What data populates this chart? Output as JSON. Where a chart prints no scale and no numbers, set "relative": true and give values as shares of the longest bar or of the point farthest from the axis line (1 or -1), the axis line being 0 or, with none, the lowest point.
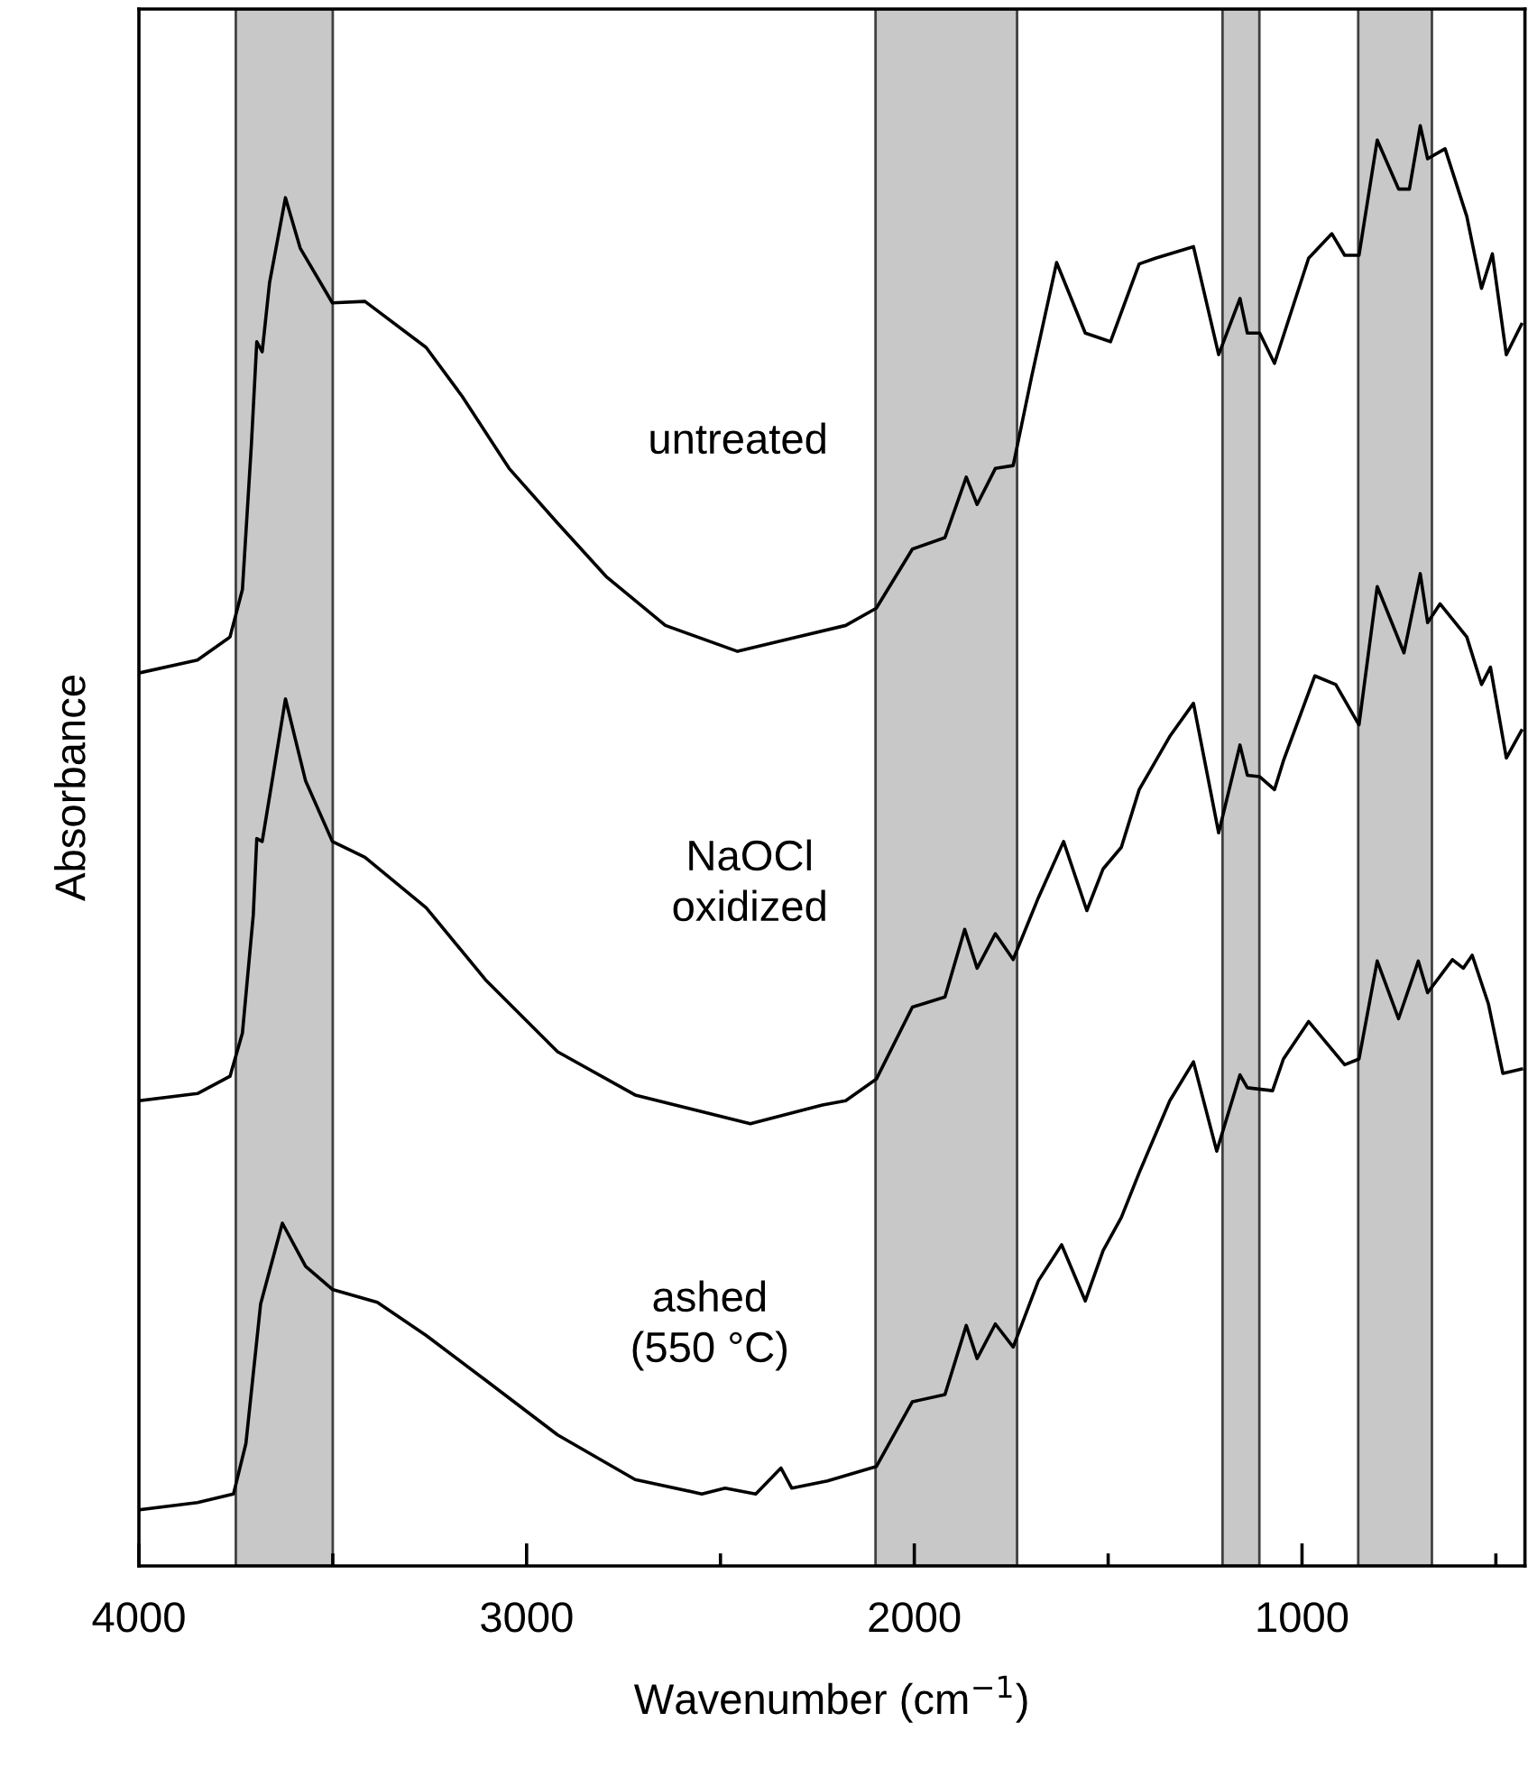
{
  "chart_data": {
    "type": "line",
    "relative": true,
    "xlabel": "Wavenumber (cm$^{−1}$)",
    "ylabel": "Absorbance",
    "xlim": [
      4000,
      425
    ],
    "xticks": [
      4000,
      {
        "value": 3500,
        "label": null
      },
      3000,
      {
        "value": 2500,
        "label": null
      },
      2000,
      {
        "value": 1500,
        "label": null
      },
      1000,
      {
        "value": 500,
        "label": null
      }
    ],
    "grid": false,
    "legend": false,
    "line_style": "solid",
    "marker": "none",
    "bands": [
      {
        "axis": "x",
        "from": 3750,
        "to": 3500,
        "color": "#c8c8c8"
      },
      {
        "axis": "x",
        "from": 2100,
        "to": 1735,
        "color": "#c8c8c8"
      },
      {
        "axis": "x",
        "from": 1205,
        "to": 1110,
        "color": "#c8c8c8"
      },
      {
        "axis": "x",
        "from": 855,
        "to": 665,
        "color": "#c8c8c8"
      }
    ],
    "series": [
      {
        "name": "untreated",
        "color": "#000000",
        "x": [
          4000,
          3849,
          3765,
          3733,
          3710,
          3696,
          3682,
          3663,
          3622,
          3584,
          3501,
          3417,
          3259,
          3166,
          3045,
          2920,
          2795,
          2642,
          2456,
          2303,
          2177,
          2098,
          2005,
          1921,
          1866,
          1838,
          1791,
          1745,
          1698,
          1633,
          1559,
          1494,
          1420,
          1378,
          1280,
          1215,
          1160,
          1141,
          1109,
          1071,
          983,
          923,
          890,
          853,
          806,
          751,
          723,
          695,
          676,
          631,
          575,
          537,
          509,
          473,
          434
        ],
        "values": [
          0.62,
          0.629,
          0.645,
          0.678,
          0.778,
          0.85,
          0.843,
          0.891,
          0.95,
          0.915,
          0.877,
          0.878,
          0.846,
          0.812,
          0.762,
          0.724,
          0.687,
          0.653,
          0.635,
          0.645,
          0.653,
          0.665,
          0.706,
          0.714,
          0.756,
          0.737,
          0.762,
          0.764,
          0.825,
          0.905,
          0.856,
          0.85,
          0.904,
          0.908,
          0.916,
          0.841,
          0.88,
          0.856,
          0.856,
          0.835,
          0.908,
          0.925,
          0.91,
          0.91,
          0.99,
          0.956,
          0.956,
          1.0,
          0.977,
          0.984,
          0.937,
          0.887,
          0.911,
          0.841,
          0.862
        ]
      },
      {
        "name": "NaOCl\noxidized",
        "color": "#000000",
        "x": [
          4000,
          3849,
          3765,
          3733,
          3705,
          3696,
          3682,
          3654,
          3622,
          3570,
          3501,
          3417,
          3259,
          3106,
          2920,
          2720,
          2423,
          2237,
          2177,
          2098,
          2005,
          1921,
          1870,
          1838,
          1791,
          1745,
          1680,
          1615,
          1555,
          1513,
          1466,
          1420,
          1341,
          1280,
          1215,
          1160,
          1141,
          1109,
          1071,
          1048,
          967,
          913,
          853,
          806,
          737,
          695,
          676,
          644,
          575,
          537,
          514,
          473,
          434
        ],
        "values": [
          0.323,
          0.328,
          0.34,
          0.37,
          0.452,
          0.505,
          0.503,
          0.549,
          0.602,
          0.545,
          0.503,
          0.492,
          0.457,
          0.407,
          0.357,
          0.327,
          0.307,
          0.32,
          0.323,
          0.338,
          0.388,
          0.395,
          0.442,
          0.415,
          0.439,
          0.421,
          0.464,
          0.503,
          0.455,
          0.484,
          0.499,
          0.539,
          0.576,
          0.599,
          0.509,
          0.57,
          0.549,
          0.548,
          0.539,
          0.559,
          0.618,
          0.612,
          0.584,
          0.68,
          0.634,
          0.689,
          0.655,
          0.668,
          0.645,
          0.612,
          0.624,
          0.561,
          0.58
        ]
      },
      {
        "name": "ashed\n(550 °C)",
        "color": "#000000",
        "x": [
          4000,
          3849,
          3756,
          3724,
          3686,
          3630,
          3570,
          3501,
          3385,
          3259,
          3106,
          2920,
          2720,
          2548,
          2488,
          2409,
          2344,
          2316,
          2224,
          2098,
          2005,
          1921,
          1866,
          1838,
          1791,
          1745,
          1680,
          1620,
          1559,
          1513,
          1466,
          1420,
          1341,
          1280,
          1220,
          1160,
          1141,
          1076,
          1048,
          983,
          890,
          853,
          806,
          751,
          700,
          676,
          612,
          584,
          561,
          519,
          482,
          434
        ],
        "values": [
          0.039,
          0.044,
          0.05,
          0.085,
          0.182,
          0.238,
          0.208,
          0.192,
          0.183,
          0.16,
          0.129,
          0.091,
          0.06,
          0.05,
          0.054,
          0.05,
          0.068,
          0.054,
          0.059,
          0.069,
          0.114,
          0.119,
          0.167,
          0.144,
          0.168,
          0.152,
          0.198,
          0.223,
          0.184,
          0.219,
          0.242,
          0.273,
          0.323,
          0.35,
          0.288,
          0.341,
          0.332,
          0.33,
          0.352,
          0.378,
          0.348,
          0.352,
          0.42,
          0.38,
          0.42,
          0.398,
          0.421,
          0.415,
          0.424,
          0.39,
          0.342,
          0.345
        ]
      }
    ]
  }
}
